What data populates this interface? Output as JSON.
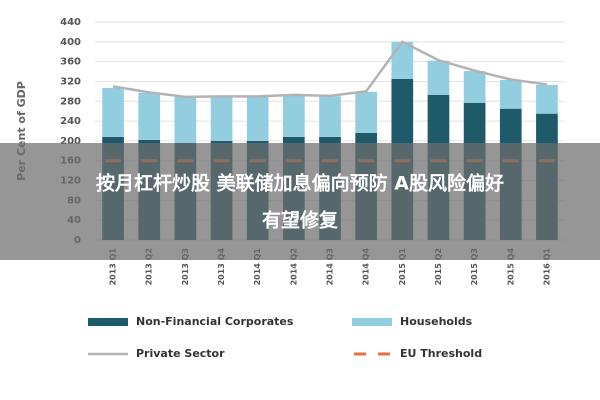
{
  "chart_data": {
    "type": "bar",
    "stacked": true,
    "y_label": "Per Cent of GDP",
    "categories": [
      "2013 Q1",
      "2013 Q2",
      "2013 Q3",
      "2013 Q4",
      "2014 Q1",
      "2014 Q2",
      "2014 Q3",
      "2014 Q4",
      "2015 Q1",
      "2015 Q2",
      "2015 Q3",
      "2015 Q4",
      "2016 Q1"
    ],
    "series": [
      {
        "name": "Non-Financial Corporates",
        "type": "bar",
        "color": "#1f5a6b",
        "values": [
          208,
          202,
          196,
          200,
          200,
          208,
          208,
          216,
          325,
          293,
          277,
          265,
          255
        ]
      },
      {
        "name": "Households",
        "type": "bar",
        "color": "#93cde0",
        "values": [
          99,
          95,
          93,
          89,
          90,
          85,
          82,
          83,
          75,
          69,
          64,
          58,
          58
        ]
      },
      {
        "name": "Private Sector",
        "type": "line",
        "color": "#b3b3b3",
        "values": [
          310,
          298,
          289,
          290,
          290,
          293,
          291,
          300,
          400,
          363,
          342,
          324,
          314
        ]
      },
      {
        "name": "EU Threshold",
        "type": "dash",
        "color": "#e8703a",
        "values": [
          160,
          160,
          160,
          160,
          160,
          160,
          160,
          160,
          160,
          160,
          160,
          160,
          160
        ]
      }
    ],
    "ylim": [
      0,
      440
    ],
    "yticks": [
      0,
      40,
      80,
      120,
      160,
      200,
      240,
      280,
      320,
      360,
      400,
      440
    ],
    "grid": true
  },
  "overlay": {
    "lines": [
      "按月杠杆炒股 美联储加息偏向预防  A股风险偏好",
      "有望修复"
    ]
  }
}
